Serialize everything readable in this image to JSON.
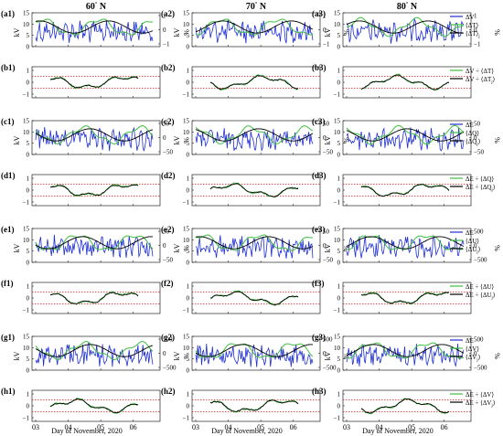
{
  "columns": [
    {
      "title": "60",
      "sup": "°",
      "suffix": " N"
    },
    {
      "title": "70",
      "sup": "°",
      "suffix": " N"
    },
    {
      "title": "80",
      "sup": "°",
      "suffix": " N"
    }
  ],
  "xlabel": "Day of November, 2020",
  "xticks": [
    "03",
    "04",
    "05",
    "06"
  ],
  "rows": [
    {
      "kind": "top",
      "labels": [
        "(a1)",
        "(a2)",
        "(a3)"
      ],
      "yticks": [
        "0",
        "5",
        "10",
        "15"
      ],
      "ylabel": "kV",
      "rticks": [
        "1",
        "0",
        "−1"
      ],
      "rlabel": "%",
      "legend": [
        {
          "text": "ΔV",
          "color": "#1f2fd0"
        },
        {
          "text": "⟨ΔT⟩",
          "color": "#3fbf3f"
        },
        {
          "text": "⟨ΔT⟩",
          "sub": "j",
          "color": "#000000"
        }
      ]
    },
    {
      "kind": "corr",
      "labels": [
        "(b1)",
        "(b2)",
        "(b3)"
      ],
      "yticks": [
        "1",
        "0",
        "−1"
      ],
      "legend": [
        {
          "text": "ΔV ÷ ⟨ΔT⟩",
          "color": "#3fbf3f"
        },
        {
          "text": "ΔV ÷ ⟨ΔT",
          "sub": "j",
          "tail": "⟩",
          "color": "#000000"
        }
      ]
    },
    {
      "kind": "top",
      "labels": [
        "(c1)",
        "(c2)",
        "(c3)"
      ],
      "yticks": [
        "0",
        "5",
        "10",
        "15"
      ],
      "ylabel": "kV",
      "rticks": [
        "50",
        "0",
        "−50"
      ],
      "rlabel": "%",
      "legend": [
        {
          "text": "ΔE",
          "color": "#1f2fd0"
        },
        {
          "text": "⟨ΔQ⟩",
          "color": "#3fbf3f"
        },
        {
          "text": "⟨ΔQ",
          "sub": "j",
          "tail": "⟩",
          "color": "#000000"
        }
      ]
    },
    {
      "kind": "corr",
      "labels": [
        "(d1)",
        "(d2)",
        "(d3)"
      ],
      "yticks": [
        "1",
        "0",
        "−1"
      ],
      "legend": [
        {
          "text": "ΔE ÷ ⟨ΔQ⟩",
          "color": "#3fbf3f"
        },
        {
          "text": "ΔE ÷ ⟨ΔQ",
          "sub": "j",
          "tail": "⟩",
          "color": "#000000"
        }
      ]
    },
    {
      "kind": "top",
      "labels": [
        "(e1)",
        "(e2)",
        "(e3)"
      ],
      "yticks": [
        "0",
        "5",
        "10",
        "15"
      ],
      "ylabel": "kV",
      "rticks": [
        "50",
        "0",
        "−50"
      ],
      "rticks3": [
        "500",
        "0",
        "−500"
      ],
      "rlabel": "%",
      "legend": [
        {
          "text": "ΔE",
          "color": "#1f2fd0"
        },
        {
          "text": "⟨ΔU⟩",
          "color": "#3fbf3f"
        },
        {
          "text": "⟨ΔU",
          "sub": "j",
          "tail": "⟩",
          "color": "#000000"
        }
      ]
    },
    {
      "kind": "corr",
      "labels": [
        "(f1)",
        "(f2)",
        "(f3)"
      ],
      "yticks": [
        "1",
        "0",
        "−1"
      ],
      "legend": [
        {
          "text": "ΔE ÷ ⟨ΔU⟩",
          "color": "#3fbf3f"
        },
        {
          "text": "ΔE ÷ ⟨ΔU",
          "sub": "j",
          "tail": "⟩",
          "color": "#000000"
        }
      ]
    },
    {
      "kind": "top",
      "labels": [
        "(g1)",
        "(g2)",
        "(g3)"
      ],
      "yticks": [
        "0",
        "5",
        "10",
        "15"
      ],
      "ylabel": "kV",
      "rticks": [
        "500",
        "0",
        "−500"
      ],
      "rlabel": "%",
      "legend": [
        {
          "text": "ΔE",
          "color": "#1f2fd0"
        },
        {
          "text": "⟨ΔV⟩",
          "color": "#3fbf3f"
        },
        {
          "text": "⟨ΔV",
          "sub": "j",
          "tail": "⟩",
          "color": "#000000"
        }
      ]
    },
    {
      "kind": "corr",
      "labels": [
        "(h1)",
        "(h2)",
        "(h3)"
      ],
      "yticks": [
        "1",
        "0",
        "−1"
      ],
      "legend": [
        {
          "text": "ΔE ÷ ⟨ΔV⟩",
          "color": "#3fbf3f"
        },
        {
          "text": "ΔE ÷ ⟨ΔV",
          "sub": "j",
          "tail": "⟩",
          "color": "#000000"
        }
      ]
    }
  ],
  "chart_data": {
    "type": "line",
    "xlabel": "Day of November, 2020",
    "xlim": [
      3,
      6.8
    ],
    "left_ylim": [
      0,
      15
    ],
    "corr_ylim": [
      -1,
      1
    ],
    "threshold_lines": [
      0.5,
      -0.5
    ],
    "threshold_color": "#cc2222",
    "colors": {
      "blue": "#1f2fd0",
      "green": "#3fbf3f",
      "black": "#000000"
    },
    "series_note": "Blue: kV on left axis; green and black: % on right axis (top rows) or correlation (ratio rows)"
  }
}
